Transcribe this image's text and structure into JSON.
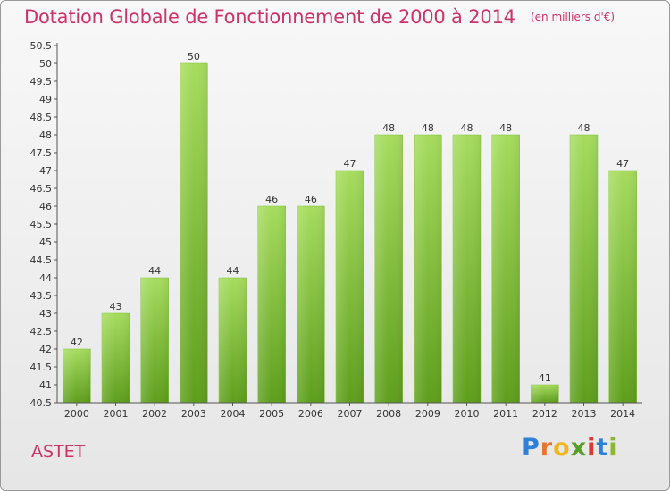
{
  "chart_data": {
    "type": "bar",
    "title": "Dotation Globale de Fonctionnement de 2000 à 2014",
    "subtitle": "(en milliers d'€)",
    "categories": [
      "2000",
      "2001",
      "2002",
      "2003",
      "2004",
      "2005",
      "2006",
      "2007",
      "2008",
      "2009",
      "2010",
      "2011",
      "2012",
      "2013",
      "2014"
    ],
    "values": [
      42,
      43,
      44,
      50,
      44,
      46,
      46,
      47,
      48,
      48,
      48,
      48,
      41,
      48,
      47
    ],
    "data_labels": [
      "42",
      "43",
      "44",
      "50",
      "44",
      "46",
      "46",
      "47",
      "48",
      "48",
      "48",
      "48",
      "41",
      "48",
      "47"
    ],
    "y_ticks": [
      "40.5",
      "41",
      "41.5",
      "42",
      "42.5",
      "43",
      "43.5",
      "44",
      "44.5",
      "45",
      "45.5",
      "46",
      "46.5",
      "47",
      "47.5",
      "48",
      "48.5",
      "49",
      "49.5",
      "50",
      "50.5"
    ],
    "ylim": [
      40.5,
      50.5
    ],
    "grid": false,
    "bar_color": "#7dc232"
  },
  "footer": {
    "commune": "ASTET",
    "brand_letters": [
      {
        "char": "P",
        "color": "#2e7fd6"
      },
      {
        "char": "r",
        "color": "#e8742a"
      },
      {
        "char": "o",
        "color": "#f2b51c"
      },
      {
        "char": "x",
        "color": "#5a9e2a"
      },
      {
        "char": "i",
        "color": "#e2352f"
      },
      {
        "char": "t",
        "color": "#2e7fd6"
      },
      {
        "char": "i",
        "color": "#8bb82e"
      }
    ]
  }
}
